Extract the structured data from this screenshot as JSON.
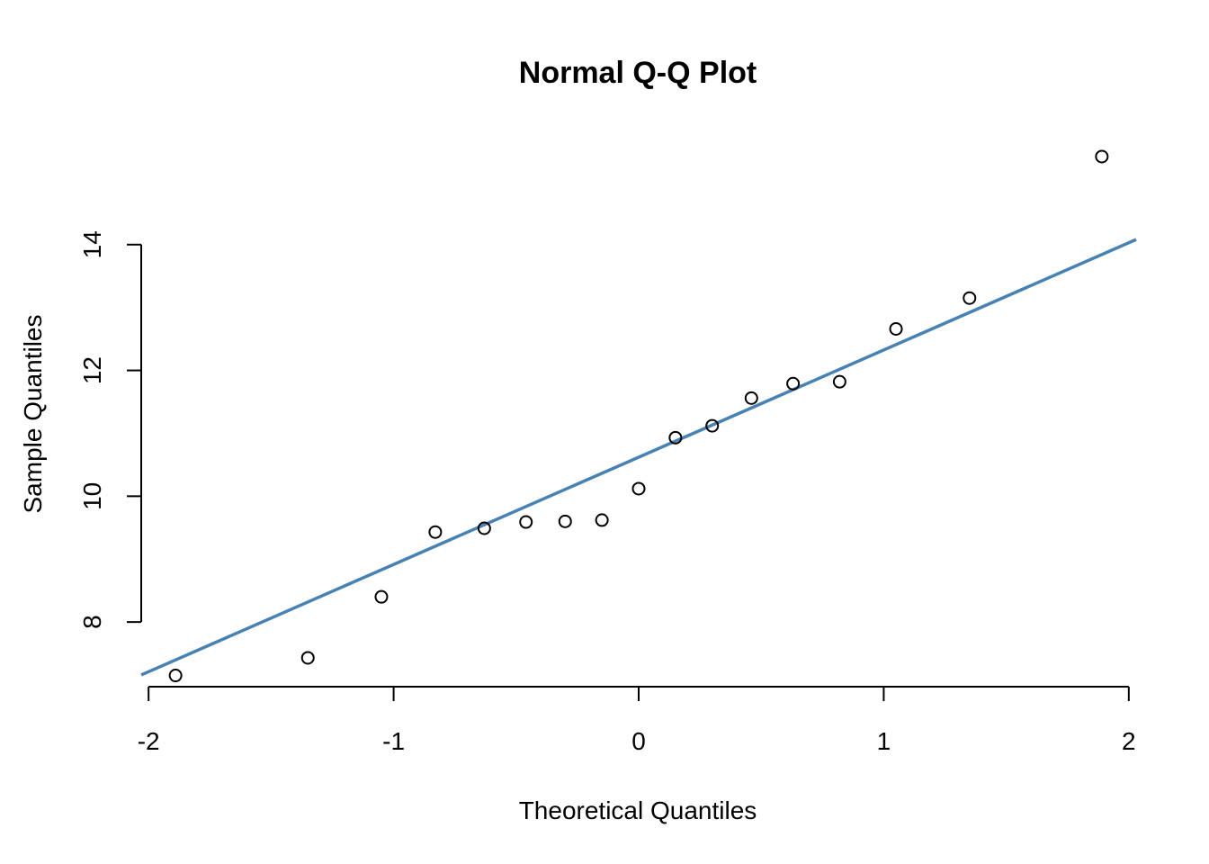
{
  "chart_data": {
    "type": "scatter",
    "title": "Normal Q-Q Plot",
    "xlabel": "Theoretical Quantiles",
    "ylabel": "Sample Quantiles",
    "xlim": [
      -2.03,
      2.03
    ],
    "ylim": [
      6.7,
      15.9
    ],
    "x_ticks": [
      -2,
      -1,
      0,
      1,
      2
    ],
    "x_tick_labels": [
      "-2",
      "-1",
      "0",
      "1",
      "2"
    ],
    "y_ticks": [
      8,
      10,
      12,
      14
    ],
    "y_tick_labels": [
      "8",
      "10",
      "12",
      "14"
    ],
    "grid": false,
    "points": {
      "x": [
        -1.89,
        -1.35,
        -1.05,
        -0.83,
        -0.63,
        -0.46,
        -0.3,
        -0.15,
        0.0,
        0.15,
        0.3,
        0.46,
        0.63,
        0.82,
        1.05,
        1.35,
        1.89
      ],
      "y": [
        7.15,
        7.43,
        8.4,
        9.43,
        9.49,
        9.59,
        9.6,
        9.62,
        10.12,
        10.93,
        11.12,
        11.56,
        11.79,
        11.82,
        12.66,
        13.15,
        15.4
      ]
    },
    "reference_line": {
      "intercept": 10.62,
      "slope": 1.705,
      "color": "#4682B4"
    },
    "point_color": "#000000"
  }
}
